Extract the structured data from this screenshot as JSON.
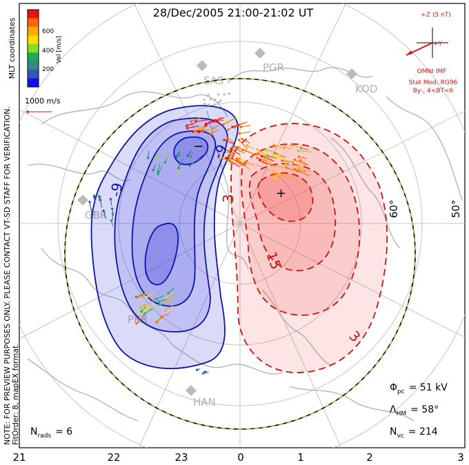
{
  "title": "28/Dec/2005 21:00-21:02 UT",
  "colorbar": {
    "label": "Vel [m/s]",
    "ticks": [
      "600",
      "400",
      "200"
    ],
    "colors": [
      "#ee1111",
      "#ff6600",
      "#ffaa00",
      "#ffdd00",
      "#88dd22",
      "#22aa55",
      "#338888",
      "#3355bb",
      "#1111ee"
    ]
  },
  "reference_vector_label": "1000 m/s",
  "coord_label": "MLT coordinates",
  "imf": {
    "z_label": "+Z (5 nT)",
    "y_label": "+Y",
    "source": "OMNI IMF",
    "stat_model": "Stat Mod: RG96",
    "bin": "By-, 4<BT<6"
  },
  "stations": [
    "SAS",
    "PGR",
    "KOD",
    "GBR",
    "PKR",
    "HAN"
  ],
  "latitude_labels": [
    "60°",
    "50°"
  ],
  "contour_labels": [
    "-9",
    "-9",
    "3",
    "15",
    "3"
  ],
  "extrema": {
    "min": "−",
    "max": "+"
  },
  "notice": [
    "NOTE: FOR PREVIEW PURPOSES ONLY. PLEASE CONTACT VT-SD STAFF FOR VERIFICATION.",
    "FitOrder: 8, mapEX format"
  ],
  "stats": {
    "phi_pc": {
      "symbol": "Φ",
      "sub": "pc",
      "value": "= 51 kV"
    },
    "lambda_hm": {
      "symbol": "Λ",
      "sub": "HM",
      "value": "= 58°"
    },
    "n_vc": {
      "symbol": "N",
      "sub": "vc",
      "value": "= 214"
    },
    "n_rads": {
      "symbol": "N",
      "sub": "rads",
      "value": "= 6"
    }
  },
  "mlt_axis": [
    "21",
    "22",
    "23",
    "0",
    "1",
    "2",
    "3"
  ],
  "colors": {
    "negative_fill": "#3333dd",
    "positive_fill": "#ee3333",
    "negative_line": "#0a12a8",
    "positive_line": "#cc1111",
    "grid": "#bbbbbb"
  }
}
